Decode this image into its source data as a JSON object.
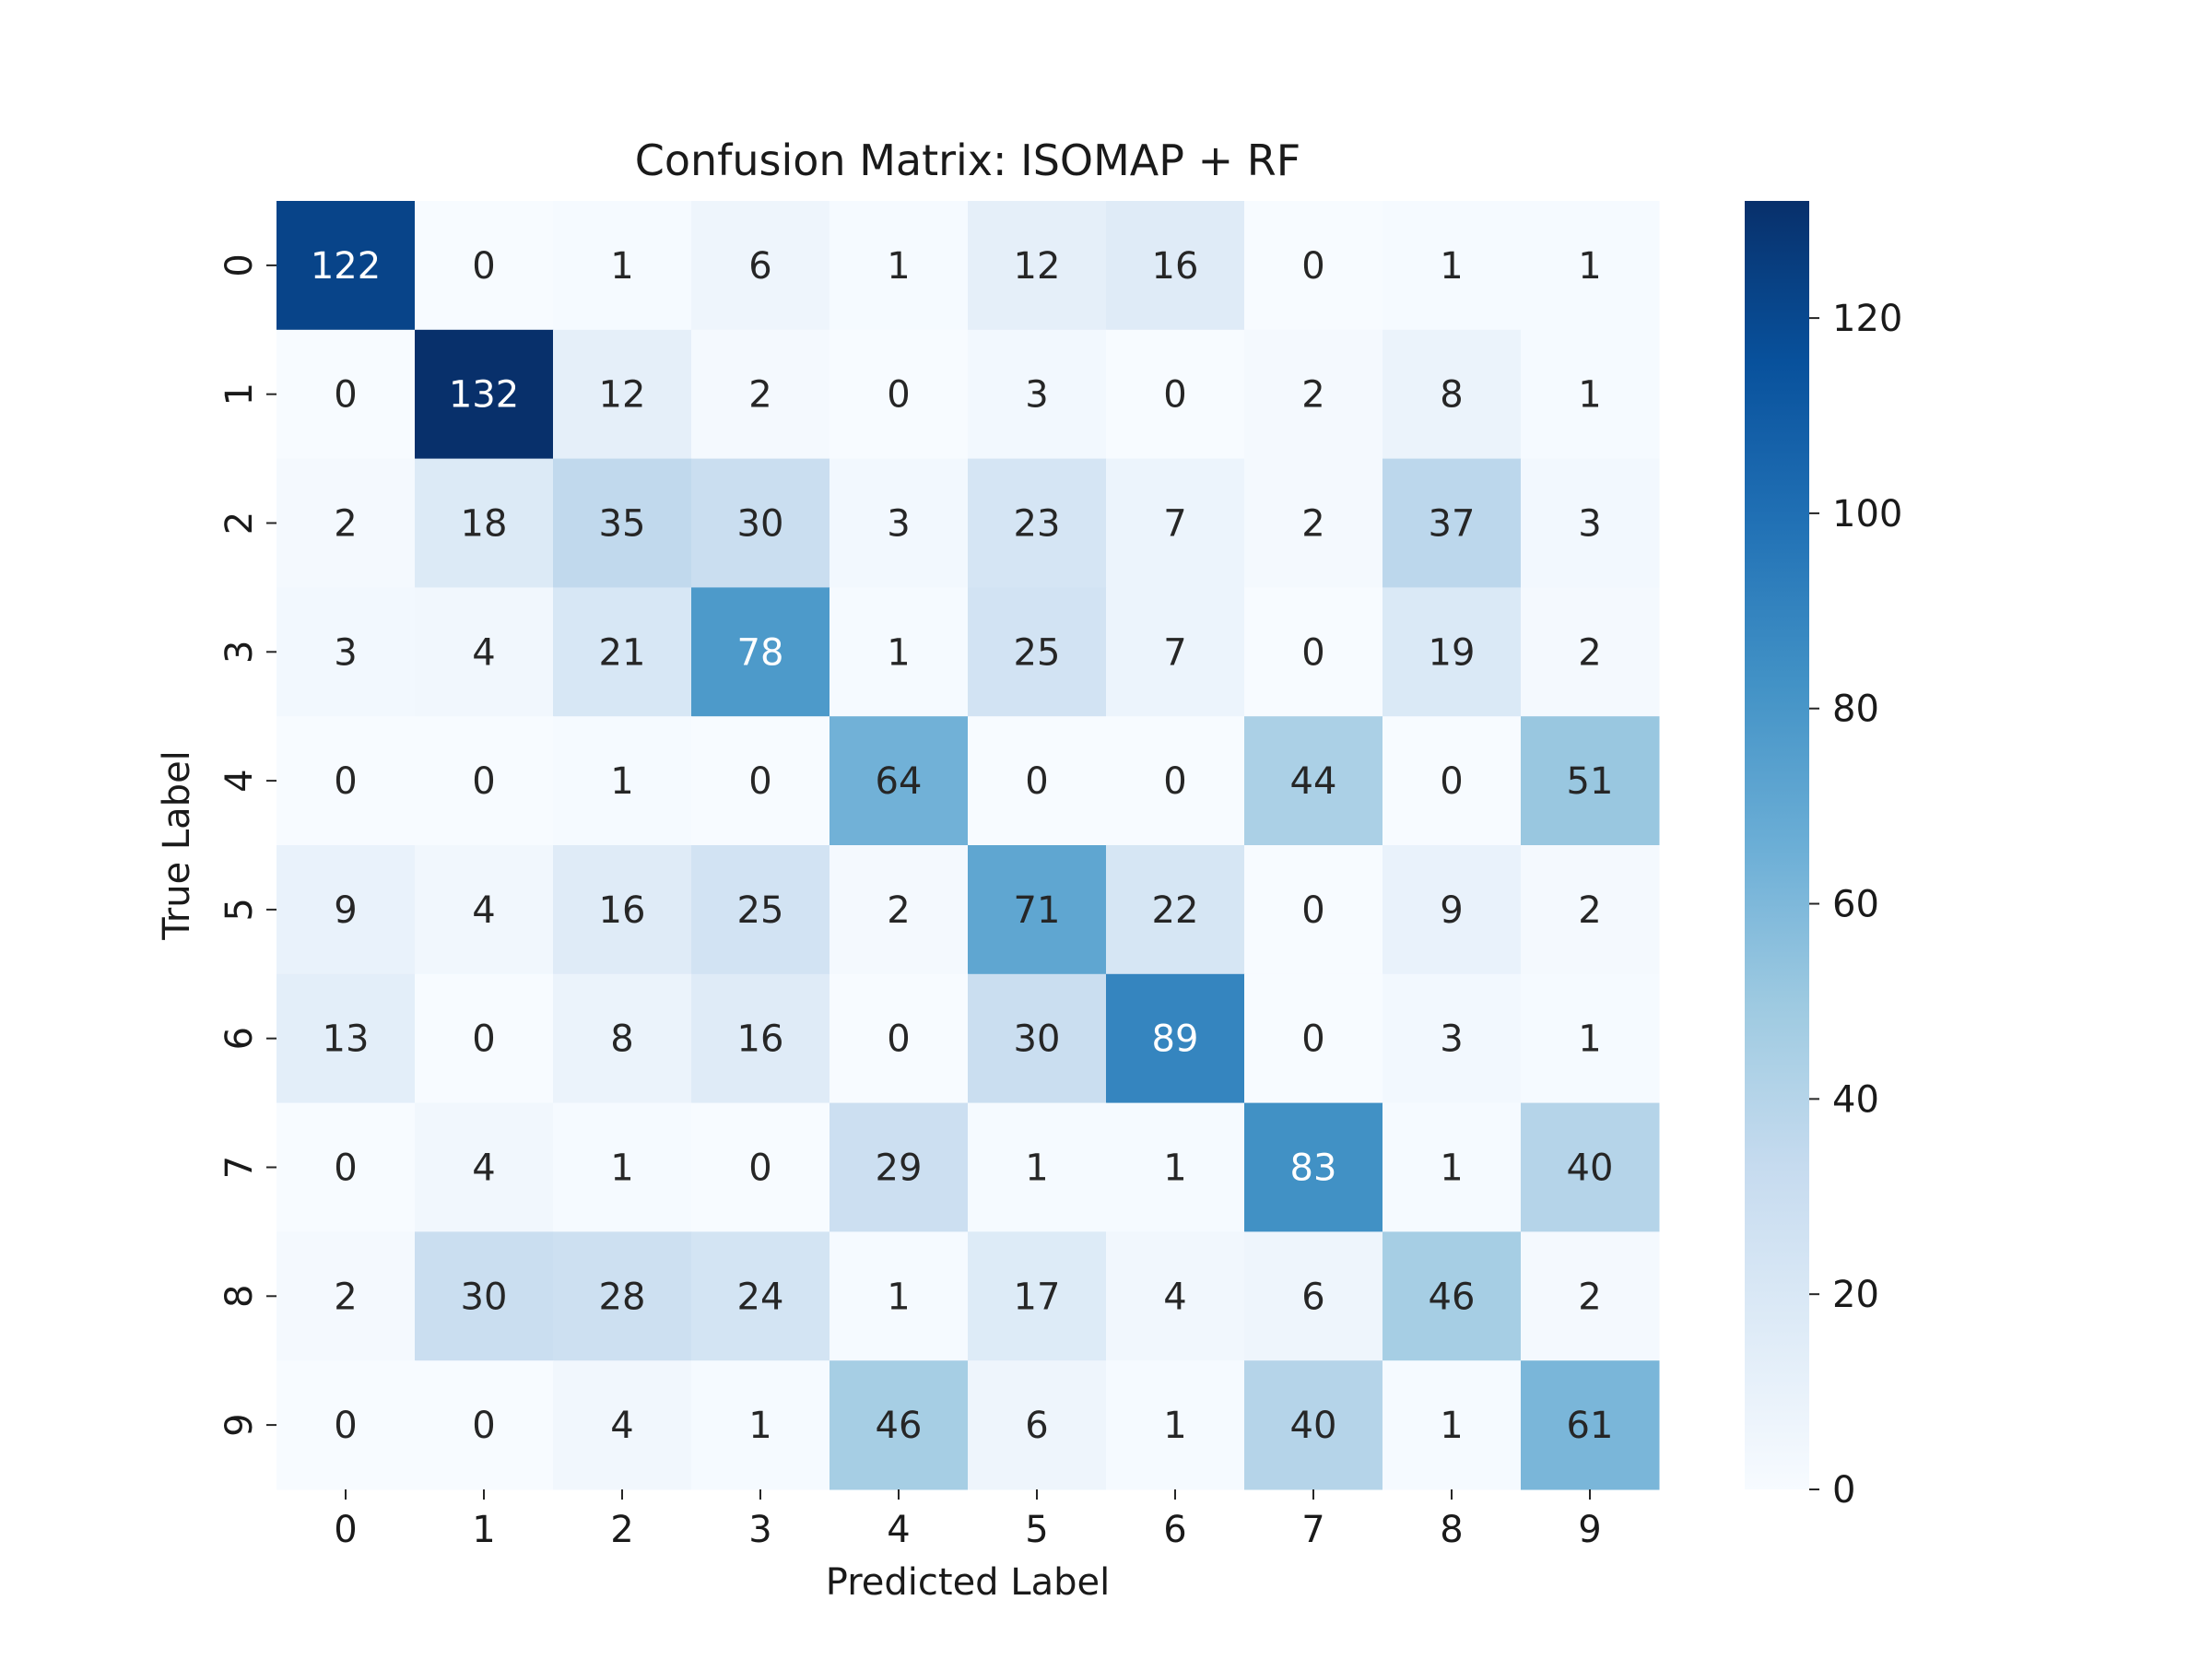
{
  "chart_data": {
    "type": "heatmap",
    "title": "Confusion Matrix: ISOMAP + RF",
    "xlabel": "Predicted Label",
    "ylabel": "True Label",
    "x_categories": [
      "0",
      "1",
      "2",
      "3",
      "4",
      "5",
      "6",
      "7",
      "8",
      "9"
    ],
    "y_categories": [
      "0",
      "1",
      "2",
      "3",
      "4",
      "5",
      "6",
      "7",
      "8",
      "9"
    ],
    "values": [
      [
        122,
        0,
        1,
        6,
        1,
        12,
        16,
        0,
        1,
        1
      ],
      [
        0,
        132,
        12,
        2,
        0,
        3,
        0,
        2,
        8,
        1
      ],
      [
        2,
        18,
        35,
        30,
        3,
        23,
        7,
        2,
        37,
        3
      ],
      [
        3,
        4,
        21,
        78,
        1,
        25,
        7,
        0,
        19,
        2
      ],
      [
        0,
        0,
        1,
        0,
        64,
        0,
        0,
        44,
        0,
        51
      ],
      [
        9,
        4,
        16,
        25,
        2,
        71,
        22,
        0,
        9,
        2
      ],
      [
        13,
        0,
        8,
        16,
        0,
        30,
        89,
        0,
        3,
        1
      ],
      [
        0,
        4,
        1,
        0,
        29,
        1,
        1,
        83,
        1,
        40
      ],
      [
        2,
        30,
        28,
        24,
        1,
        17,
        4,
        6,
        46,
        2
      ],
      [
        0,
        0,
        4,
        1,
        46,
        6,
        1,
        40,
        1,
        61
      ]
    ],
    "colormap": "Blues",
    "colorbar": {
      "range": [
        0,
        132
      ],
      "ticks": [
        0,
        20,
        40,
        60,
        80,
        100,
        120
      ],
      "tick_labels": [
        "0",
        "20",
        "40",
        "60",
        "80",
        "100",
        "120"
      ]
    }
  }
}
